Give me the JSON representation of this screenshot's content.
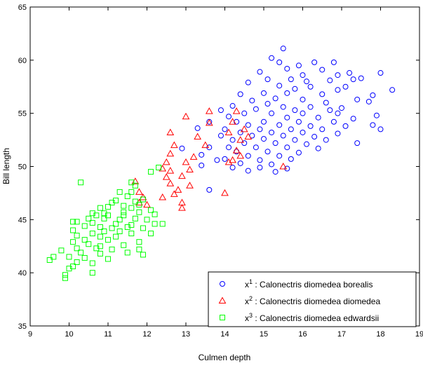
{
  "chart_data": {
    "type": "scatter",
    "title": "",
    "xlabel": "Culmen depth",
    "ylabel": "Bill length",
    "xlim": [
      9,
      19
    ],
    "ylim": [
      35,
      65
    ],
    "xticks": [
      9,
      10,
      11,
      12,
      13,
      14,
      15,
      16,
      17,
      18,
      19
    ],
    "yticks": [
      35,
      40,
      45,
      50,
      55,
      60,
      65
    ],
    "grid": false,
    "legend_position": "bottom-right",
    "series": [
      {
        "name": "Calonectris diomedea borealis",
        "symbol": "x",
        "superscript": "1",
        "marker": "circle",
        "color": "#0000ff",
        "points": [
          [
            15.5,
            61.1
          ],
          [
            15.2,
            60.2
          ],
          [
            15.9,
            59.5
          ],
          [
            16.3,
            59.8
          ],
          [
            15.4,
            59.8
          ],
          [
            16.8,
            59.8
          ],
          [
            15.6,
            59.2
          ],
          [
            16.5,
            59.1
          ],
          [
            14.9,
            58.9
          ],
          [
            17.2,
            58.8
          ],
          [
            18.0,
            58.8
          ],
          [
            16.0,
            58.6
          ],
          [
            16.9,
            58.6
          ],
          [
            15.1,
            58.2
          ],
          [
            15.7,
            58.2
          ],
          [
            17.3,
            58.2
          ],
          [
            17.5,
            58.3
          ],
          [
            16.1,
            58.0
          ],
          [
            16.7,
            58.1
          ],
          [
            14.6,
            57.9
          ],
          [
            15.4,
            57.6
          ],
          [
            16.2,
            57.5
          ],
          [
            17.1,
            57.5
          ],
          [
            15.8,
            57.3
          ],
          [
            16.9,
            57.2
          ],
          [
            18.3,
            57.2
          ],
          [
            14.4,
            56.8
          ],
          [
            15.0,
            56.9
          ],
          [
            15.6,
            56.9
          ],
          [
            16.5,
            56.8
          ],
          [
            17.8,
            56.7
          ],
          [
            15.3,
            56.4
          ],
          [
            16.0,
            56.3
          ],
          [
            17.4,
            56.3
          ],
          [
            14.7,
            56.2
          ],
          [
            16.6,
            56.0
          ],
          [
            17.7,
            56.1
          ],
          [
            15.1,
            55.9
          ],
          [
            14.2,
            55.7
          ],
          [
            15.5,
            55.6
          ],
          [
            16.2,
            55.6
          ],
          [
            17.0,
            55.5
          ],
          [
            14.8,
            55.4
          ],
          [
            15.8,
            55.3
          ],
          [
            16.7,
            55.3
          ],
          [
            13.9,
            55.3
          ],
          [
            14.5,
            55.0
          ],
          [
            15.2,
            55.0
          ],
          [
            16.0,
            55.0
          ],
          [
            16.9,
            55.0
          ],
          [
            17.9,
            54.8
          ],
          [
            14.1,
            54.7
          ],
          [
            15.6,
            54.6
          ],
          [
            16.4,
            54.6
          ],
          [
            17.3,
            54.5
          ],
          [
            14.3,
            54.2
          ],
          [
            15.0,
            54.2
          ],
          [
            15.9,
            54.2
          ],
          [
            16.8,
            54.2
          ],
          [
            13.6,
            54.2
          ],
          [
            14.6,
            53.9
          ],
          [
            15.4,
            53.9
          ],
          [
            16.2,
            53.8
          ],
          [
            17.1,
            53.8
          ],
          [
            17.8,
            53.9
          ],
          [
            18.0,
            53.5
          ],
          [
            14.0,
            53.5
          ],
          [
            14.9,
            53.5
          ],
          [
            15.7,
            53.5
          ],
          [
            16.5,
            53.5
          ],
          [
            13.3,
            53.6
          ],
          [
            14.4,
            53.2
          ],
          [
            15.2,
            53.2
          ],
          [
            16.0,
            53.2
          ],
          [
            16.9,
            53.1
          ],
          [
            14.7,
            52.9
          ],
          [
            15.5,
            52.9
          ],
          [
            16.3,
            52.8
          ],
          [
            13.9,
            52.9
          ],
          [
            14.2,
            52.5
          ],
          [
            15.0,
            52.6
          ],
          [
            15.8,
            52.5
          ],
          [
            16.6,
            52.5
          ],
          [
            14.5,
            52.2
          ],
          [
            15.3,
            52.2
          ],
          [
            16.1,
            52.1
          ],
          [
            17.4,
            52.2
          ],
          [
            13.6,
            51.8
          ],
          [
            14.1,
            51.8
          ],
          [
            14.8,
            51.8
          ],
          [
            15.6,
            51.8
          ],
          [
            16.4,
            51.7
          ],
          [
            12.9,
            51.7
          ],
          [
            14.3,
            51.4
          ],
          [
            15.1,
            51.4
          ],
          [
            15.9,
            51.3
          ],
          [
            13.4,
            51.1
          ],
          [
            14.6,
            51.0
          ],
          [
            15.4,
            51.0
          ],
          [
            14.0,
            50.7
          ],
          [
            14.9,
            50.6
          ],
          [
            15.7,
            50.7
          ],
          [
            13.8,
            50.6
          ],
          [
            14.4,
            50.3
          ],
          [
            15.2,
            50.2
          ],
          [
            13.4,
            50.1
          ],
          [
            14.2,
            49.9
          ],
          [
            14.9,
            49.9
          ],
          [
            15.6,
            49.8
          ],
          [
            14.6,
            49.6
          ],
          [
            15.3,
            49.5
          ],
          [
            13.6,
            47.8
          ]
        ]
      },
      {
        "name": "Calonectris diomedea diomedea",
        "symbol": "x",
        "superscript": "2",
        "marker": "triangle",
        "color": "#ff0000",
        "points": [
          [
            13.0,
            54.7
          ],
          [
            13.6,
            55.2
          ],
          [
            14.3,
            55.2
          ],
          [
            13.6,
            54.1
          ],
          [
            14.2,
            54.2
          ],
          [
            14.5,
            53.5
          ],
          [
            12.6,
            53.2
          ],
          [
            14.1,
            53.2
          ],
          [
            13.3,
            52.8
          ],
          [
            14.6,
            52.8
          ],
          [
            14.4,
            52.5
          ],
          [
            12.7,
            52.0
          ],
          [
            13.5,
            52.0
          ],
          [
            14.3,
            51.5
          ],
          [
            12.6,
            51.2
          ],
          [
            14.4,
            51.0
          ],
          [
            13.2,
            50.9
          ],
          [
            14.2,
            50.6
          ],
          [
            12.5,
            50.4
          ],
          [
            13.0,
            50.4
          ],
          [
            14.1,
            50.4
          ],
          [
            15.5,
            50.0
          ],
          [
            12.4,
            49.8
          ],
          [
            12.6,
            49.6
          ],
          [
            12.5,
            49.0
          ],
          [
            13.1,
            49.7
          ],
          [
            12.9,
            49.1
          ],
          [
            11.7,
            48.6
          ],
          [
            12.6,
            48.4
          ],
          [
            13.1,
            48.2
          ],
          [
            12.8,
            47.8
          ],
          [
            11.8,
            47.6
          ],
          [
            12.7,
            47.4
          ],
          [
            12.4,
            47.1
          ],
          [
            14.0,
            47.5
          ],
          [
            11.9,
            47.1
          ],
          [
            11.8,
            46.6
          ],
          [
            12.9,
            46.6
          ],
          [
            12.0,
            46.4
          ],
          [
            12.9,
            46.1
          ]
        ]
      },
      {
        "name": "Calonectris diomedea edwardsii",
        "symbol": "x",
        "superscript": "3",
        "marker": "square",
        "color": "#00ff00",
        "points": [
          [
            12.3,
            49.9
          ],
          [
            12.1,
            49.5
          ],
          [
            10.3,
            48.5
          ],
          [
            11.6,
            48.5
          ],
          [
            11.7,
            48.2
          ],
          [
            11.3,
            47.6
          ],
          [
            11.6,
            47.6
          ],
          [
            11.5,
            47.2
          ],
          [
            11.9,
            46.9
          ],
          [
            11.2,
            46.8
          ],
          [
            11.7,
            46.7
          ],
          [
            11.1,
            46.6
          ],
          [
            11.8,
            46.4
          ],
          [
            11.4,
            46.3
          ],
          [
            10.8,
            46.1
          ],
          [
            11.0,
            46.2
          ],
          [
            11.6,
            46.1
          ],
          [
            12.1,
            45.9
          ],
          [
            10.6,
            45.6
          ],
          [
            10.9,
            45.6
          ],
          [
            11.4,
            45.7
          ],
          [
            11.8,
            45.7
          ],
          [
            12.2,
            45.5
          ],
          [
            10.7,
            45.4
          ],
          [
            11.0,
            45.4
          ],
          [
            11.4,
            45.4
          ],
          [
            10.5,
            45.1
          ],
          [
            10.9,
            45.1
          ],
          [
            11.3,
            45.0
          ],
          [
            11.7,
            45.1
          ],
          [
            12.0,
            45.0
          ],
          [
            10.1,
            44.8
          ],
          [
            10.2,
            44.8
          ],
          [
            10.6,
            44.7
          ],
          [
            11.2,
            44.6
          ],
          [
            11.6,
            44.5
          ],
          [
            12.2,
            44.6
          ],
          [
            12.4,
            44.6
          ],
          [
            10.4,
            44.4
          ],
          [
            10.8,
            44.3
          ],
          [
            11.1,
            44.2
          ],
          [
            11.5,
            44.3
          ],
          [
            11.9,
            44.2
          ],
          [
            10.1,
            44.0
          ],
          [
            10.9,
            43.9
          ],
          [
            11.3,
            43.9
          ],
          [
            10.6,
            43.7
          ],
          [
            11.6,
            43.7
          ],
          [
            12.1,
            43.7
          ],
          [
            10.2,
            43.5
          ],
          [
            10.8,
            43.4
          ],
          [
            11.2,
            43.4
          ],
          [
            10.4,
            43.1
          ],
          [
            11.0,
            43.1
          ],
          [
            11.8,
            42.9
          ],
          [
            10.1,
            42.9
          ],
          [
            10.5,
            42.7
          ],
          [
            10.8,
            42.5
          ],
          [
            11.4,
            42.6
          ],
          [
            10.2,
            42.3
          ],
          [
            10.7,
            42.3
          ],
          [
            11.1,
            42.2
          ],
          [
            11.8,
            42.2
          ],
          [
            9.8,
            42.1
          ],
          [
            10.3,
            41.9
          ],
          [
            10.8,
            41.8
          ],
          [
            11.5,
            41.9
          ],
          [
            11.9,
            41.7
          ],
          [
            9.6,
            41.5
          ],
          [
            10.0,
            41.5
          ],
          [
            10.4,
            41.4
          ],
          [
            11.0,
            41.3
          ],
          [
            9.5,
            41.2
          ],
          [
            10.2,
            41.0
          ],
          [
            10.6,
            40.9
          ],
          [
            10.1,
            40.6
          ],
          [
            10.0,
            40.4
          ],
          [
            10.6,
            40.0
          ],
          [
            9.9,
            39.8
          ],
          [
            9.9,
            39.5
          ]
        ]
      }
    ]
  }
}
